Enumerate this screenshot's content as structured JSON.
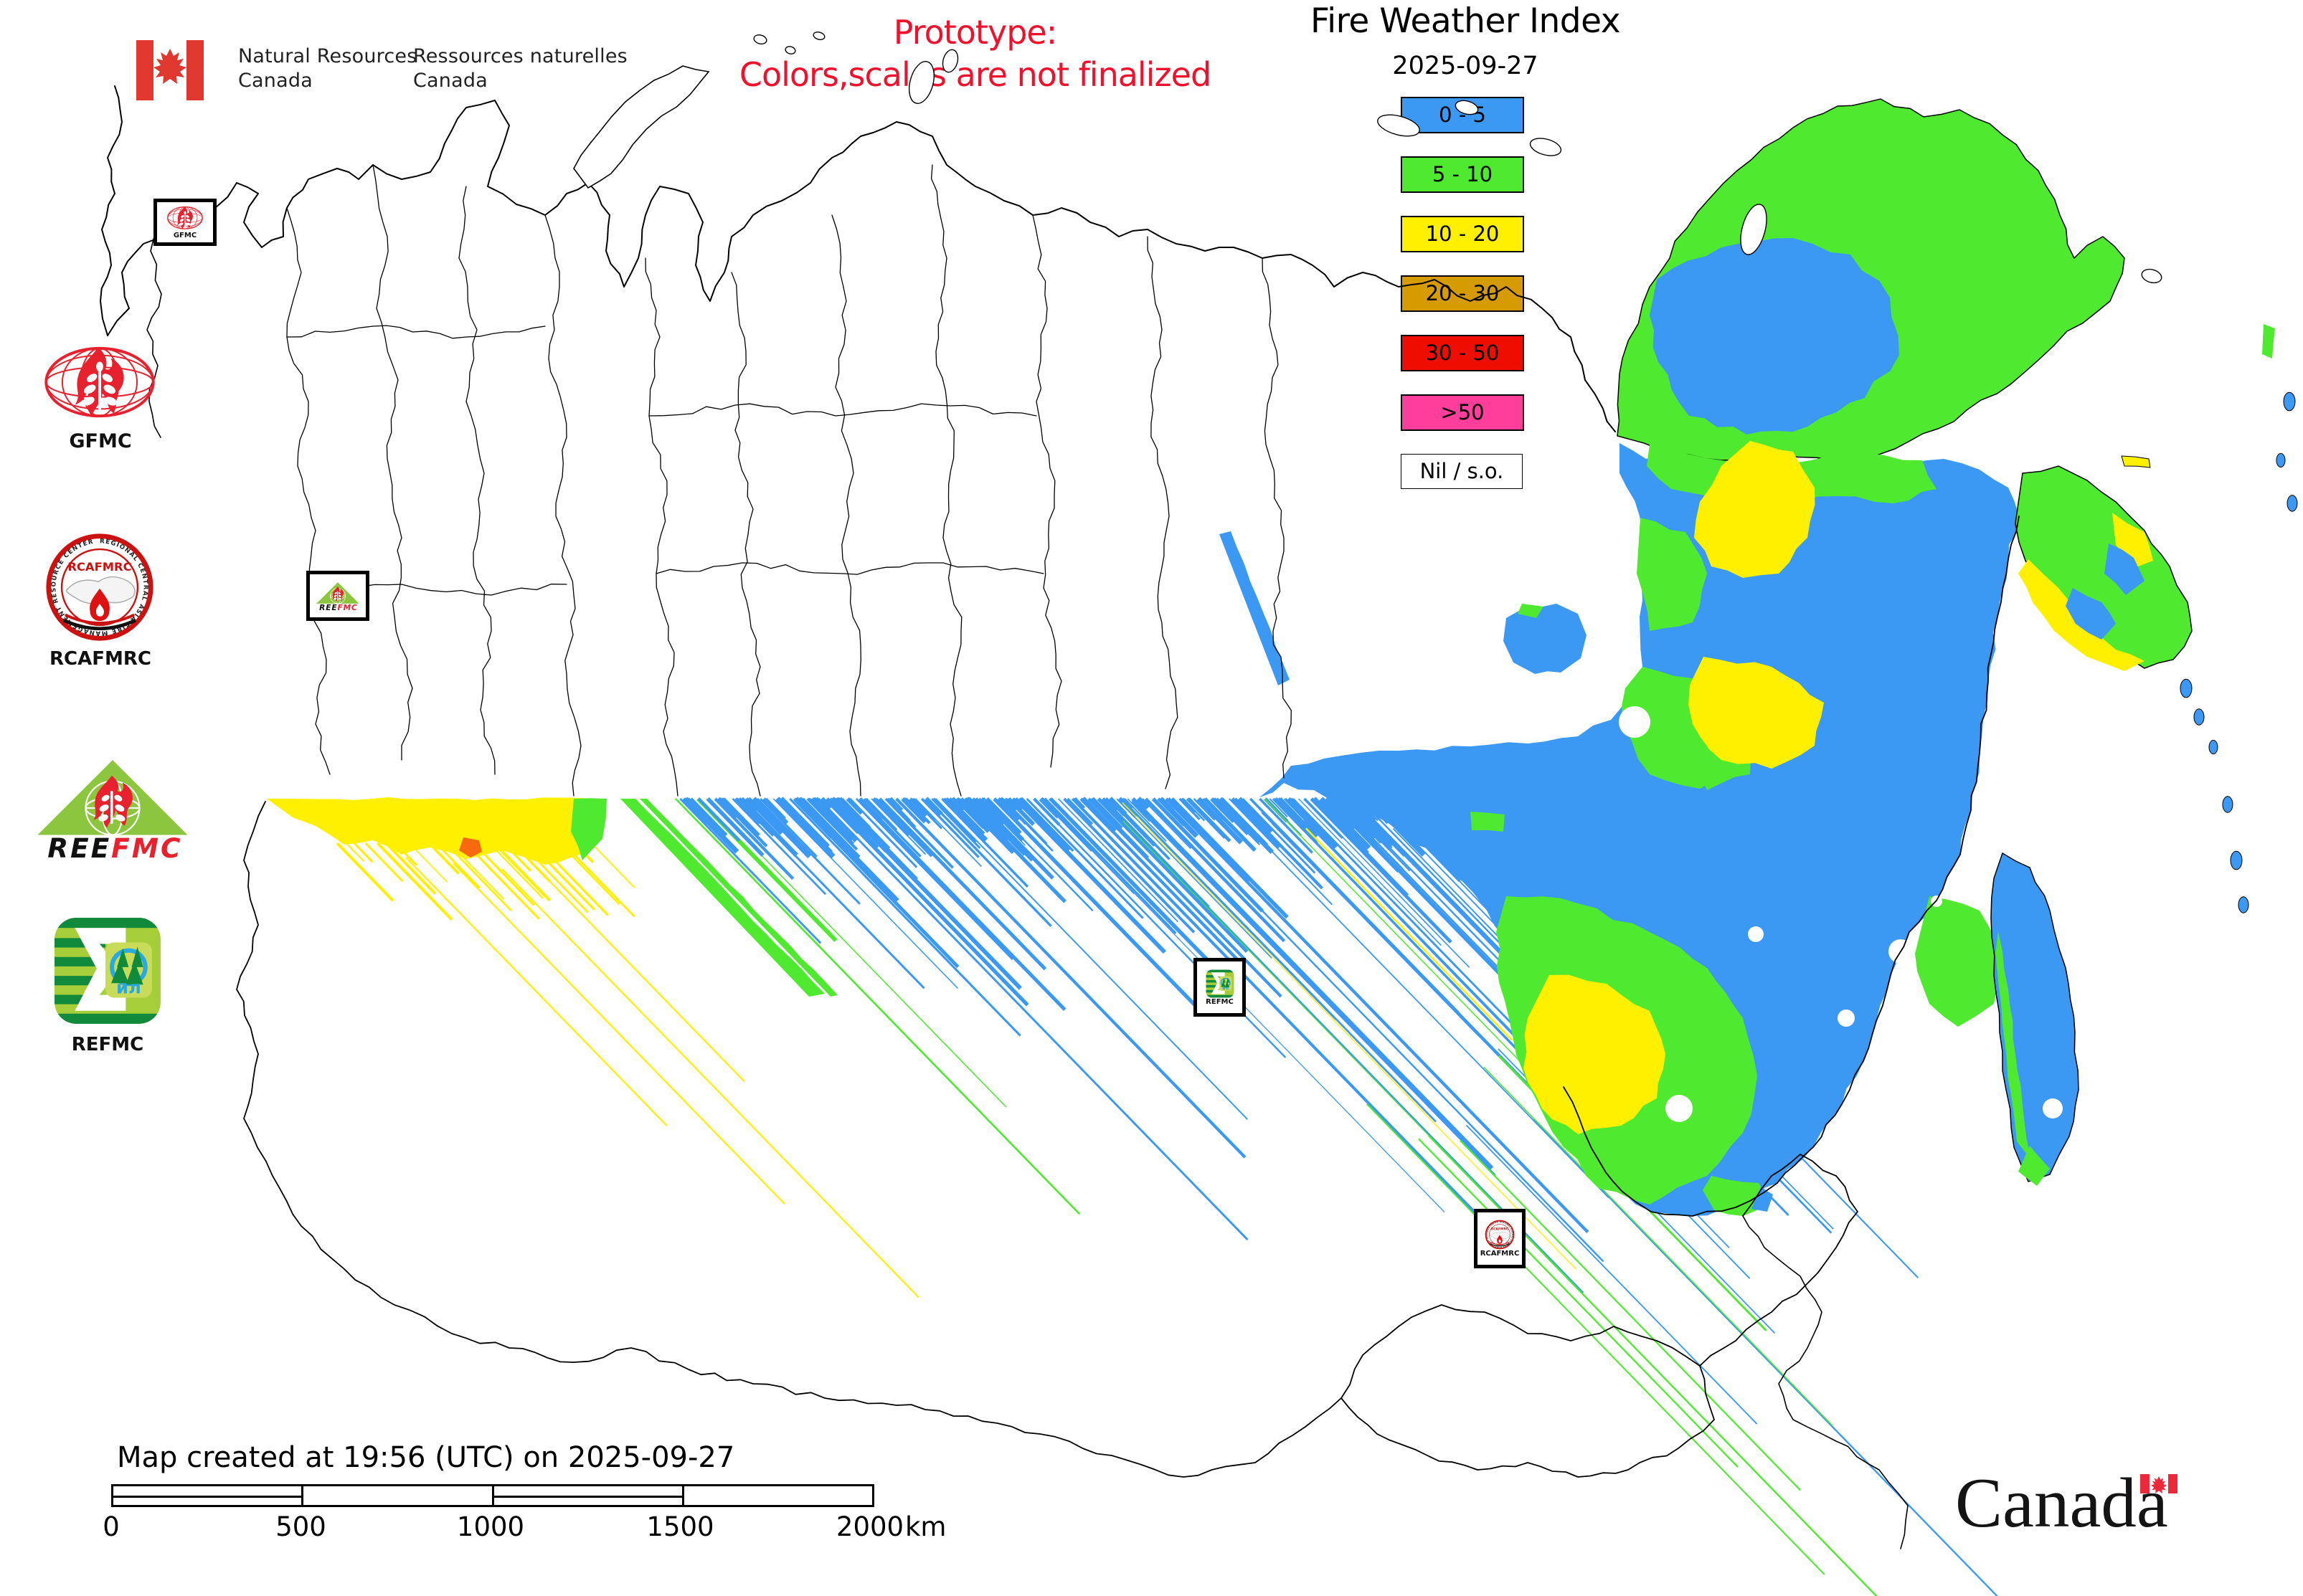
{
  "header": {
    "agency_en_line1": "Natural Resources",
    "agency_en_line2": "Canada",
    "agency_fr_line1": "Ressources naturelles",
    "agency_fr_line2": "Canada",
    "prototype_line1": "Prototype:",
    "prototype_line2": "Colors,scales are not finalized",
    "title": "Fire Weather Index",
    "date": "2025-09-27"
  },
  "legend": {
    "items": [
      {
        "label": "0 - 5",
        "color": "#3B99F3"
      },
      {
        "label": "5 - 10",
        "color": "#4FE92F"
      },
      {
        "label": "10 - 20",
        "color": "#FFF000"
      },
      {
        "label": "20 - 30",
        "color": "#D59B00"
      },
      {
        "label": "30 - 50",
        "color": "#EE0D00"
      },
      {
        "label": ">50",
        "color": "#FF3D9B"
      },
      {
        "label": "Nil / s.o.",
        "color": "#FFFFFF"
      }
    ]
  },
  "logos": {
    "gfmc_label": "GFMC",
    "rcafmrc_label": "RCAFMRC",
    "rcafmrc_ring_text": "REGIONAL CENTRAL ASIA FIRE MANAGEMENT RESOURCE CENTER",
    "rcafmrc_inner_title": "RCAFMRC",
    "reefmc_black_part": "REE",
    "reefmc_red_part": "FMC",
    "refmc_label": "REFMC",
    "refmc_inner_text": "ил"
  },
  "map_markers": [
    {
      "id": "gfmc",
      "label": "GFMC"
    },
    {
      "id": "reefmc",
      "label": ""
    },
    {
      "id": "refmc",
      "label": "REFMC"
    },
    {
      "id": "rcafmrc",
      "label": "RCAFMRC"
    }
  ],
  "footer": {
    "created_text": "Map created at 19:56 (UTC) on 2025-09-27",
    "scale_ticks": [
      "0",
      "500",
      "1000",
      "1500",
      "2000"
    ],
    "scale_unit": "km",
    "wordmark": "Canada"
  },
  "colors": {
    "fwi_0_5": "#3B99F3",
    "fwi_5_10": "#4FE92F",
    "fwi_10_20": "#FFF000",
    "fwi_20_30": "#D59B00",
    "fwi_30_50": "#EE0D00",
    "fwi_gt50": "#FF3D9B",
    "fwi_nil": "#FFFFFF",
    "prototype_red": "#F2112D",
    "flag_red": "#E0372E",
    "hotspot_orange": "#F96A10"
  }
}
